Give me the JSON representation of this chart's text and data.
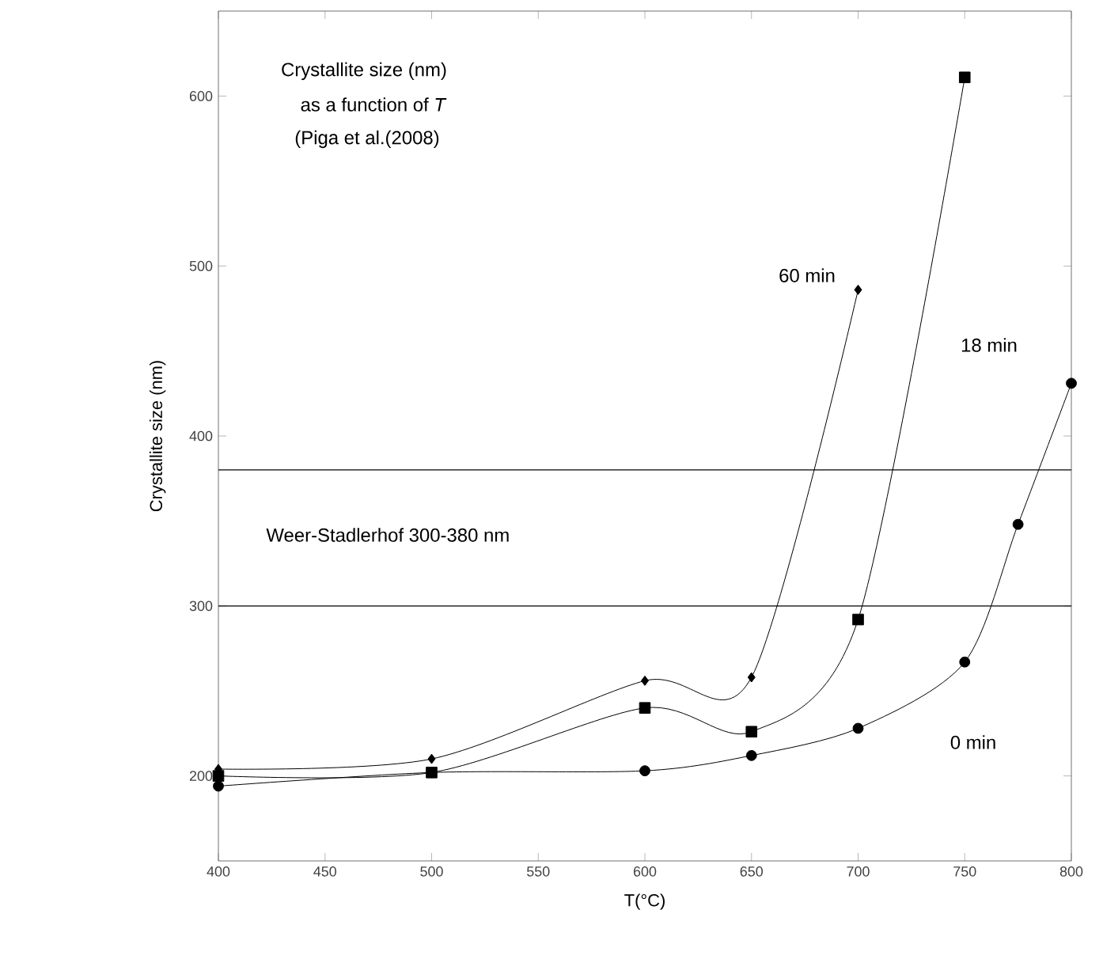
{
  "chart_data": {
    "type": "line",
    "xlabel": "T(°C)",
    "ylabel": "Crystallite size (nm)",
    "xlim": [
      400,
      800
    ],
    "xticks": [
      400,
      450,
      500,
      550,
      600,
      650,
      700,
      750,
      800
    ],
    "ylim": [
      150,
      650
    ],
    "yticks": [
      200,
      300,
      400,
      500,
      600
    ],
    "grid": false,
    "line_style": "solid",
    "series": [
      {
        "name": "0 min",
        "color": "#000000",
        "marker": "circle",
        "x": [
          400,
          500,
          600,
          650,
          700,
          750,
          775,
          800
        ],
        "values": [
          194,
          202,
          203,
          212,
          228,
          267,
          348,
          431
        ]
      },
      {
        "name": "18 min",
        "color": "#000000",
        "marker": "square",
        "x": [
          400,
          500,
          600,
          650,
          700,
          750
        ],
        "values": [
          200,
          202,
          240,
          226,
          292,
          611
        ]
      },
      {
        "name": "60 min",
        "color": "#000000",
        "marker": "diamond",
        "x": [
          400,
          500,
          600,
          650,
          700
        ],
        "values": [
          204,
          210,
          256,
          258,
          486
        ]
      }
    ],
    "ref_lines": [
      {
        "axis": "y",
        "value": 300,
        "color": "#000000"
      },
      {
        "axis": "y",
        "value": 380,
        "color": "#000000"
      }
    ],
    "annotations": [
      "Crystallite size (nm)",
      "as a function of *T*",
      "(Piga et al.(2008)",
      "Weer-Stadlerhof 300-380 nm"
    ]
  }
}
